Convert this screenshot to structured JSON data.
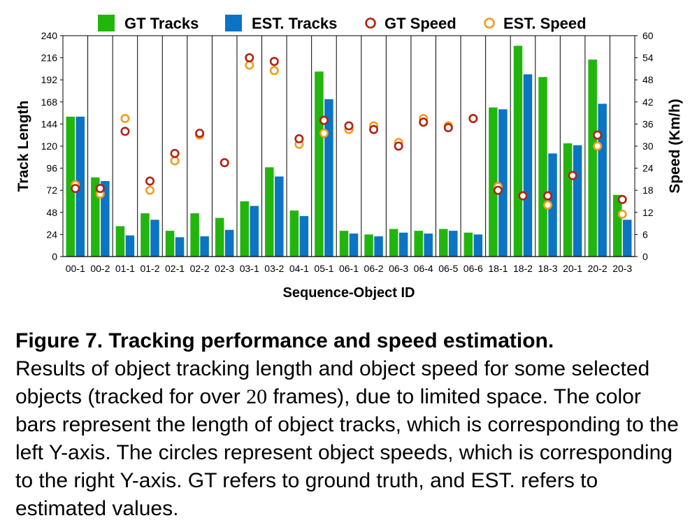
{
  "chart_data": {
    "type": "bar",
    "xlabel": "Sequence-Object ID",
    "ylabel": "Track Length",
    "y2label": "Speed (Km/h)",
    "ylim": [
      0,
      240
    ],
    "yticks": [
      0,
      24,
      48,
      72,
      96,
      120,
      144,
      168,
      192,
      216,
      240
    ],
    "y2lim": [
      0,
      60
    ],
    "y2ticks": [
      0,
      6,
      12,
      18,
      24,
      30,
      36,
      42,
      48,
      54,
      60
    ],
    "grid": "vertical",
    "legend_position": "top",
    "categories": [
      "00-1",
      "00-2",
      "01-1",
      "01-2",
      "02-1",
      "02-2",
      "02-3",
      "03-1",
      "03-2",
      "04-1",
      "05-1",
      "06-1",
      "06-2",
      "06-3",
      "06-4",
      "06-5",
      "06-6",
      "18-1",
      "18-2",
      "18-3",
      "20-1",
      "20-2",
      "20-3"
    ],
    "series": [
      {
        "name": "GT Tracks",
        "kind": "bar",
        "axis": "left",
        "color": "#22b50e",
        "values": [
          152,
          86,
          33,
          47,
          28,
          47,
          42,
          60,
          97,
          50,
          201,
          28,
          24,
          30,
          28,
          30,
          26,
          162,
          229,
          195,
          123,
          214,
          67
        ]
      },
      {
        "name": "EST. Tracks",
        "kind": "bar",
        "axis": "left",
        "color": "#0b74c4",
        "values": [
          152,
          82,
          23,
          40,
          21,
          22,
          29,
          55,
          87,
          44,
          171,
          25,
          22,
          26,
          25,
          28,
          24,
          160,
          198,
          112,
          121,
          166,
          40
        ]
      },
      {
        "name": "GT Speed",
        "kind": "circle",
        "axis": "right",
        "color": "#b22210",
        "values": [
          18.5,
          18.5,
          34.0,
          20.5,
          28.0,
          33.5,
          25.5,
          54.0,
          53.0,
          32.0,
          37.0,
          35.5,
          34.5,
          30.0,
          36.5,
          35.0,
          37.5,
          18.0,
          16.5,
          16.5,
          22.0,
          33.0,
          15.5
        ]
      },
      {
        "name": "EST. Speed",
        "kind": "circle",
        "axis": "right",
        "color": "#f39c1c",
        "values": [
          19.5,
          17.0,
          37.5,
          18.0,
          26.0,
          33.0,
          25.5,
          52.0,
          50.5,
          30.5,
          33.5,
          34.5,
          35.5,
          31.0,
          37.5,
          35.5,
          37.5,
          19.0,
          16.5,
          14.0,
          22.0,
          30.0,
          11.5
        ]
      }
    ]
  },
  "caption": {
    "title": "Figure 7.  Tracking performance and speed estimation.",
    "body_before": "Results of object tracking length and object speed for some selected objects (tracked for over ",
    "number": "20",
    "body_after": " frames), due to limited space. The color bars represent the length of object tracks, which is corresponding to the left Y-axis. The circles represent object speeds, which is corresponding to the right Y-axis. GT refers to ground truth, and EST. refers to estimated values."
  }
}
